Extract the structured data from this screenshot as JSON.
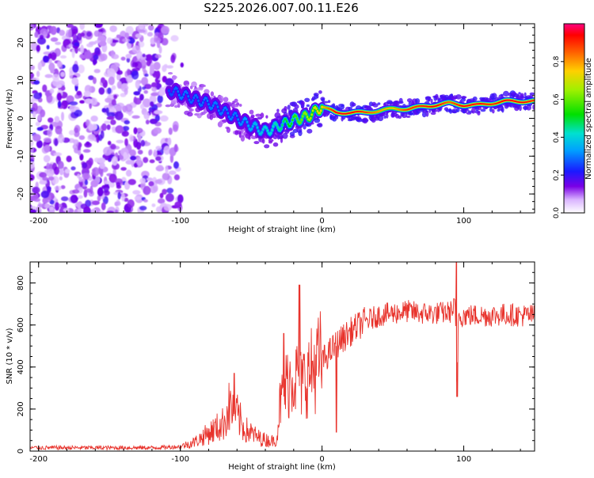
{
  "page_title": "S225.2026.007.00.11.E26",
  "chart_data": [
    {
      "type": "heatmap",
      "title": "S225.2026.007.00.11.E26",
      "xlabel": "Height of straight line (km)",
      "ylabel": "Frequency (Hz)",
      "xlim": [
        -206,
        150
      ],
      "ylim": [
        -25,
        25
      ],
      "x_ticks": [
        -200,
        -100,
        0,
        100
      ],
      "x_tick_labels": [
        "-200",
        "-100",
        "0",
        "100"
      ],
      "y_ticks": [
        -20,
        -10,
        0,
        10,
        20
      ],
      "y_tick_labels": [
        "-20",
        "-10",
        "0",
        "10",
        "20"
      ],
      "ridge": {
        "x": [
          -108,
          -100,
          -90,
          -80,
          -70,
          -60,
          -50,
          -40,
          -30,
          -20,
          -10,
          0,
          10,
          20,
          30,
          40,
          50,
          60,
          70,
          80,
          90,
          100,
          110,
          120,
          130,
          140,
          150
        ],
        "freq": [
          7.5,
          6.5,
          5.0,
          4.0,
          2.0,
          0.0,
          -2.0,
          -3.5,
          -2.0,
          -0.5,
          0.5,
          3.0,
          1.5,
          1.5,
          1.5,
          2.0,
          2.5,
          2.5,
          3.0,
          3.5,
          4.0,
          3.5,
          3.5,
          4.0,
          4.5,
          4.5,
          4.5
        ],
        "amplitude": [
          0.25,
          0.3,
          0.28,
          0.3,
          0.3,
          0.3,
          0.35,
          0.4,
          0.45,
          0.55,
          0.65,
          0.75,
          0.95,
          0.95,
          0.9,
          0.8,
          0.75,
          0.9,
          0.9,
          0.95,
          0.85,
          0.95,
          0.95,
          0.9,
          0.95,
          0.95,
          0.9
        ]
      },
      "noise_region": {
        "x": [
          -206,
          -97
        ],
        "freq": [
          -25,
          25
        ],
        "amplitude": [
          0.05,
          0.25
        ]
      },
      "colorbar": {
        "label": "Normalized spectral amplitude",
        "range": [
          0,
          1
        ],
        "ticks": [
          0.0,
          0.2,
          0.4,
          0.6,
          0.8
        ],
        "tick_labels": [
          "0.0",
          "0.2",
          "0.4",
          "0.6",
          "0.8"
        ]
      }
    },
    {
      "type": "line",
      "xlabel": "Height of straight line (km)",
      "ylabel": "SNR (10 * v/v)",
      "xlim": [
        -206,
        150
      ],
      "ylim": [
        0,
        900
      ],
      "x_ticks": [
        -200,
        -100,
        0,
        100
      ],
      "x_tick_labels": [
        "-200",
        "-100",
        "0",
        "100"
      ],
      "y_ticks": [
        0,
        200,
        400,
        600,
        800
      ],
      "y_tick_labels": [
        "0",
        "200",
        "400",
        "600",
        "800"
      ],
      "series": [
        {
          "name": "SNR",
          "color": "#e8332c",
          "x": [
            -206,
            -180,
            -150,
            -120,
            -100,
            -90,
            -80,
            -70,
            -65,
            -60,
            -55,
            -50,
            -45,
            -40,
            -35,
            -32,
            -30,
            -25,
            -20,
            -17,
            -15,
            -10,
            -5,
            0,
            10,
            20,
            30,
            40,
            50,
            60,
            70,
            80,
            90,
            94,
            95,
            96,
            100,
            110,
            120,
            130,
            140,
            150
          ],
          "values": [
            15,
            15,
            15,
            15,
            20,
            40,
            80,
            120,
            200,
            160,
            100,
            80,
            60,
            50,
            45,
            50,
            200,
            300,
            350,
            320,
            300,
            340,
            380,
            420,
            500,
            560,
            610,
            640,
            650,
            660,
            650,
            650,
            655,
            680,
            330,
            640,
            640,
            640,
            640,
            645,
            640,
            640
          ],
          "spikes": [
            {
              "x": -62,
              "value": 370
            },
            {
              "x": -27,
              "value": 560
            },
            {
              "x": -16,
              "value": 790
            },
            {
              "x": 10,
              "value": 90
            },
            {
              "x": 95,
              "value": 900
            },
            {
              "x": 95.3,
              "value": 260
            }
          ]
        }
      ]
    }
  ]
}
